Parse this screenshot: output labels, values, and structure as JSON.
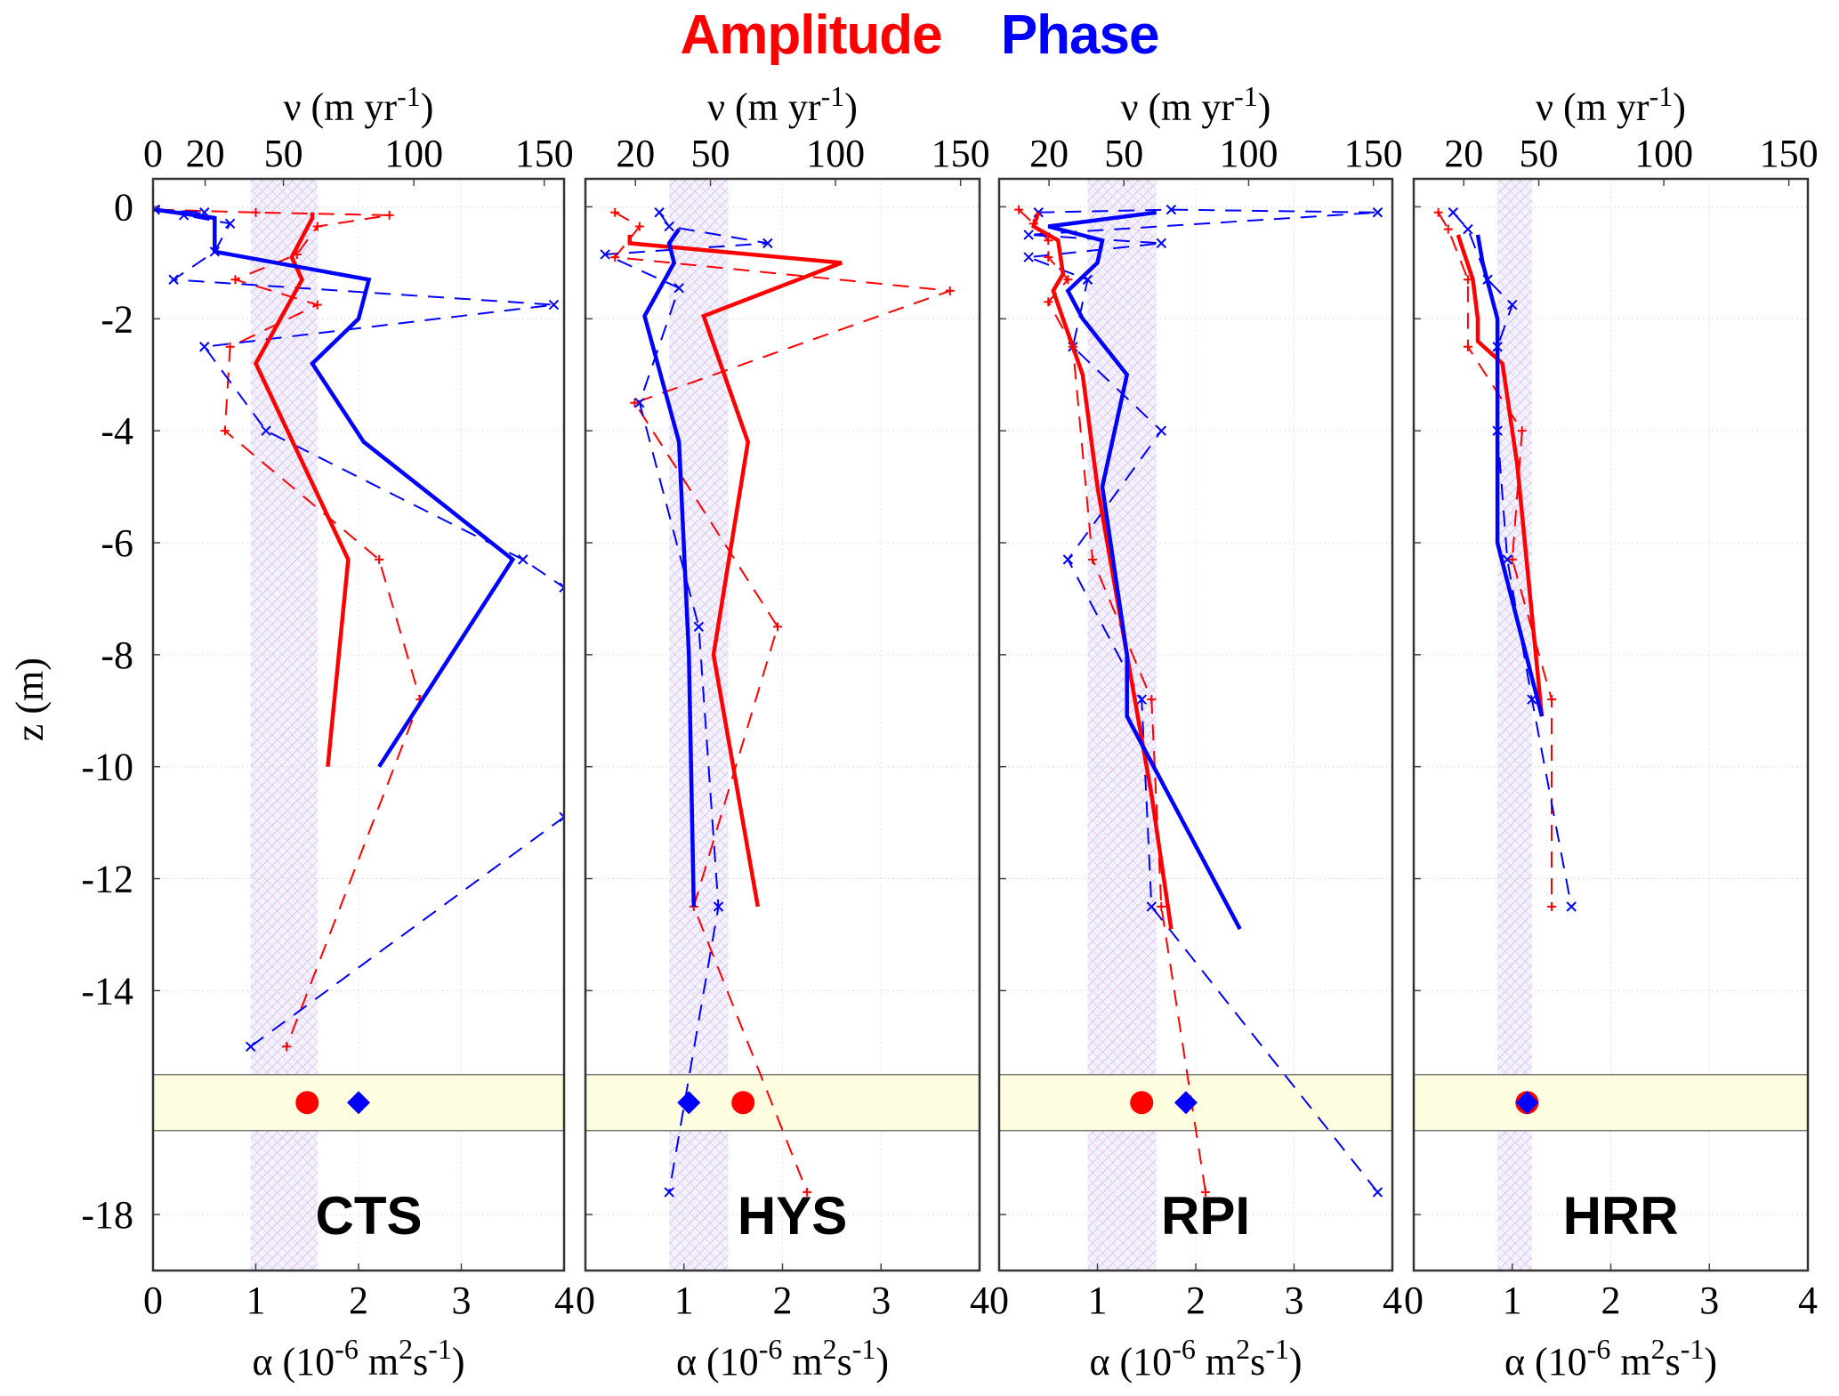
{
  "title": {
    "amplitude": "Amplitude",
    "phase": "Phase",
    "amplitude_color": "#ff0000",
    "phase_color": "#0000ff"
  },
  "chart_data": {
    "type": "line",
    "ylabel": "z (m)",
    "xlabel_bottom": "α (10⁻⁶ m²s⁻¹)",
    "xlabel_top": "ν (m yr⁻¹)",
    "ylim": [
      -19,
      0.5
    ],
    "xlim": [
      0,
      4
    ],
    "yticks": [
      0,
      -2,
      -4,
      -6,
      -8,
      -10,
      -12,
      -14,
      -18
    ],
    "xticks_bottom": [
      0,
      1,
      2,
      3,
      4
    ],
    "xticks_top": [
      0,
      20,
      50,
      100,
      150
    ],
    "nu_per_alpha": 39.4,
    "grid": true,
    "series_colors": {
      "amplitude": "#ff0000",
      "phase": "#0000ff",
      "band": "#fffde0"
    },
    "band_z": [
      -15.5,
      -16.5
    ],
    "panels": [
      {
        "name": "CTS",
        "top_ticks": [
          "0",
          "20",
          "50",
          "100",
          "150"
        ],
        "shade_alpha": [
          0.95,
          1.6
        ],
        "amplitude_solid": [
          [
            1.55,
            -0.1
          ],
          [
            1.55,
            -0.2
          ],
          [
            1.35,
            -0.9
          ],
          [
            1.45,
            -1.3
          ],
          [
            1.0,
            -2.8
          ],
          [
            1.9,
            -6.3
          ],
          [
            1.7,
            -10.0
          ]
        ],
        "phase_solid": [
          [
            0.02,
            -0.05
          ],
          [
            0.6,
            -0.2
          ],
          [
            0.6,
            -0.8
          ],
          [
            2.1,
            -1.3
          ],
          [
            2.0,
            -2.0
          ],
          [
            1.55,
            -2.8
          ],
          [
            2.05,
            -4.2
          ],
          [
            3.5,
            -6.3
          ],
          [
            2.2,
            -10.0
          ]
        ],
        "amplitude_dashed": [
          [
            0.05,
            -0.05
          ],
          [
            1.0,
            -0.1
          ],
          [
            2.3,
            -0.15
          ],
          [
            1.6,
            -0.35
          ],
          [
            1.4,
            -0.85
          ],
          [
            0.8,
            -1.3
          ],
          [
            1.6,
            -1.75
          ],
          [
            0.75,
            -2.5
          ],
          [
            0.7,
            -4.0
          ],
          [
            2.2,
            -6.3
          ],
          [
            2.6,
            -8.8
          ],
          [
            1.3,
            -15.0
          ]
        ],
        "phase_dashed": [
          [
            0.02,
            -0.05
          ],
          [
            0.5,
            -0.1
          ],
          [
            0.3,
            -0.15
          ],
          [
            0.75,
            -0.3
          ],
          [
            0.6,
            -0.8
          ],
          [
            0.2,
            -1.3
          ],
          [
            3.9,
            -1.75
          ],
          [
            0.5,
            -2.5
          ],
          [
            1.1,
            -4.0
          ],
          [
            3.6,
            -6.3
          ],
          [
            4.0,
            -6.8
          ],
          [
            4.0,
            -10.9
          ],
          [
            0.95,
            -15.0
          ]
        ],
        "amplitude_marker": {
          "alpha": 1.5,
          "z": -16.0,
          "shape": "circle"
        },
        "phase_marker": {
          "alpha": 2.0,
          "z": -16.0,
          "shape": "diamond"
        }
      },
      {
        "name": "HYS",
        "top_ticks": [
          "20",
          "50",
          "100",
          "150"
        ],
        "shade_alpha": [
          0.85,
          1.45
        ],
        "amplitude_solid": [
          [
            0.45,
            -0.5
          ],
          [
            0.45,
            -0.65
          ],
          [
            2.6,
            -1.0
          ],
          [
            1.2,
            -1.95
          ],
          [
            1.65,
            -4.2
          ],
          [
            1.3,
            -8.0
          ],
          [
            1.75,
            -12.5
          ]
        ],
        "phase_solid": [
          [
            0.95,
            -0.4
          ],
          [
            0.85,
            -0.65
          ],
          [
            0.9,
            -1.0
          ],
          [
            0.6,
            -1.95
          ],
          [
            0.95,
            -4.2
          ],
          [
            1.05,
            -8.0
          ],
          [
            1.1,
            -12.5
          ]
        ],
        "amplitude_dashed": [
          [
            0.3,
            -0.1
          ],
          [
            0.55,
            -0.35
          ],
          [
            0.3,
            -0.9
          ],
          [
            3.7,
            -1.5
          ],
          [
            0.5,
            -3.5
          ],
          [
            1.95,
            -7.5
          ],
          [
            1.1,
            -12.5
          ],
          [
            2.25,
            -17.6
          ]
        ],
        "phase_dashed": [
          [
            0.75,
            -0.1
          ],
          [
            0.85,
            -0.35
          ],
          [
            1.85,
            -0.65
          ],
          [
            0.2,
            -0.85
          ],
          [
            0.95,
            -1.45
          ],
          [
            0.55,
            -3.5
          ],
          [
            1.15,
            -7.5
          ],
          [
            1.35,
            -12.5
          ],
          [
            0.85,
            -17.6
          ]
        ],
        "amplitude_marker": {
          "alpha": 1.6,
          "z": -16.0,
          "shape": "circle"
        },
        "phase_marker": {
          "alpha": 1.05,
          "z": -16.0,
          "shape": "diamond"
        }
      },
      {
        "name": "RPI",
        "top_ticks": [
          "20",
          "50",
          "100",
          "150"
        ],
        "shade_alpha": [
          0.9,
          1.6
        ],
        "amplitude_solid": [
          [
            0.4,
            -0.1
          ],
          [
            0.35,
            -0.35
          ],
          [
            0.6,
            -0.6
          ],
          [
            0.65,
            -1.2
          ],
          [
            0.55,
            -1.5
          ],
          [
            0.65,
            -2.0
          ],
          [
            0.85,
            -3.0
          ],
          [
            1.0,
            -5.0
          ],
          [
            1.3,
            -8.0
          ],
          [
            1.55,
            -10.5
          ],
          [
            1.75,
            -12.9
          ]
        ],
        "phase_solid": [
          [
            1.6,
            -0.1
          ],
          [
            0.5,
            -0.35
          ],
          [
            1.05,
            -0.6
          ],
          [
            1.0,
            -1.0
          ],
          [
            0.7,
            -1.5
          ],
          [
            0.85,
            -2.0
          ],
          [
            1.3,
            -3.0
          ],
          [
            1.05,
            -5.0
          ],
          [
            1.3,
            -8.0
          ],
          [
            1.3,
            -9.1
          ],
          [
            2.45,
            -12.9
          ]
        ],
        "amplitude_dashed": [
          [
            0.2,
            -0.05
          ],
          [
            0.35,
            -0.3
          ],
          [
            0.5,
            -0.6
          ],
          [
            0.5,
            -0.9
          ],
          [
            0.7,
            -1.3
          ],
          [
            0.5,
            -1.7
          ],
          [
            0.75,
            -2.5
          ],
          [
            0.95,
            -6.3
          ],
          [
            1.55,
            -8.8
          ],
          [
            1.65,
            -12.5
          ],
          [
            2.1,
            -17.6
          ]
        ],
        "phase_dashed": [
          [
            0.4,
            -0.1
          ],
          [
            1.75,
            -0.05
          ],
          [
            3.85,
            -0.1
          ],
          [
            0.3,
            -0.5
          ],
          [
            1.65,
            -0.65
          ],
          [
            0.3,
            -0.9
          ],
          [
            0.9,
            -1.3
          ],
          [
            0.75,
            -2.5
          ],
          [
            1.65,
            -4.0
          ],
          [
            0.7,
            -6.3
          ],
          [
            1.45,
            -8.8
          ],
          [
            1.55,
            -12.5
          ],
          [
            3.85,
            -17.6
          ]
        ],
        "amplitude_marker": {
          "alpha": 1.45,
          "z": -16.0,
          "shape": "circle"
        },
        "phase_marker": {
          "alpha": 1.9,
          "z": -16.0,
          "shape": "diamond"
        }
      },
      {
        "name": "HRR",
        "top_ticks": [
          "20",
          "50",
          "100",
          "150"
        ],
        "shade_alpha": [
          0.85,
          1.2
        ],
        "amplitude_solid": [
          [
            0.45,
            -0.5
          ],
          [
            0.6,
            -1.3
          ],
          [
            0.65,
            -2.0
          ],
          [
            0.65,
            -2.4
          ],
          [
            0.9,
            -2.8
          ],
          [
            1.05,
            -4.6
          ],
          [
            1.3,
            -9.1
          ]
        ],
        "phase_solid": [
          [
            0.65,
            -0.5
          ],
          [
            0.7,
            -1.0
          ],
          [
            0.85,
            -2.0
          ],
          [
            0.85,
            -6.0
          ],
          [
            1.3,
            -9.1
          ]
        ],
        "amplitude_dashed": [
          [
            0.25,
            -0.1
          ],
          [
            0.35,
            -0.4
          ],
          [
            0.55,
            -1.3
          ],
          [
            0.55,
            -2.5
          ],
          [
            1.1,
            -4.0
          ],
          [
            1.0,
            -6.3
          ],
          [
            1.4,
            -8.8
          ],
          [
            1.4,
            -12.5
          ]
        ],
        "phase_dashed": [
          [
            0.4,
            -0.1
          ],
          [
            0.55,
            -0.4
          ],
          [
            0.75,
            -1.3
          ],
          [
            1.0,
            -1.75
          ],
          [
            0.85,
            -2.5
          ],
          [
            0.85,
            -4.0
          ],
          [
            0.95,
            -6.3
          ],
          [
            1.2,
            -8.8
          ],
          [
            1.6,
            -12.5
          ]
        ],
        "amplitude_marker": {
          "alpha": 1.15,
          "z": -16.0,
          "shape": "circle"
        },
        "phase_marker": {
          "alpha": 1.15,
          "z": -16.0,
          "shape": "diamond"
        }
      }
    ]
  }
}
